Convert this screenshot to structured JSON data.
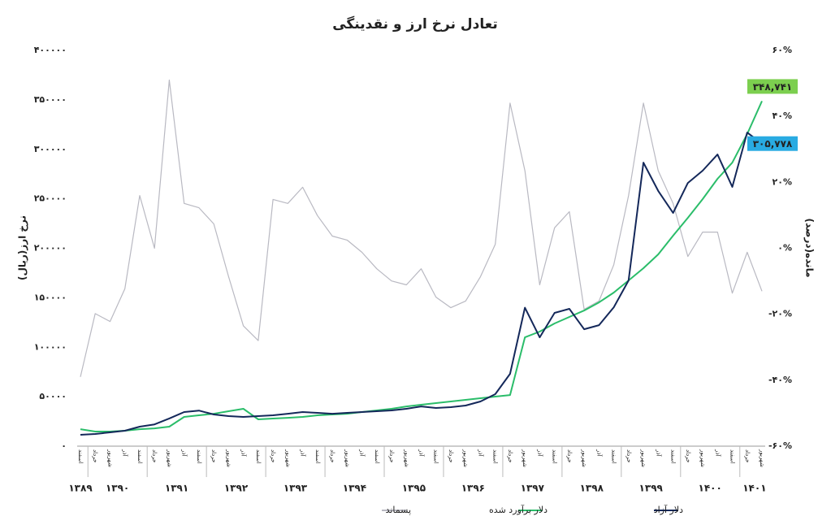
{
  "chart_data": {
    "type": "line",
    "title": "تعادل نرخ ارز و نقدینگی",
    "y_label": "نرخ ارز(ریال)",
    "y2_label": "مانده(درصد)",
    "categories": [
      "اسفند",
      "خرداد",
      "شهریور",
      "آذر",
      "اسفند",
      "خرداد",
      "شهریور",
      "آذر",
      "اسفند",
      "خرداد",
      "شهریور",
      "آذر",
      "اسفند",
      "خرداد",
      "شهریور",
      "آذر",
      "اسفند",
      "خرداد",
      "شهریور",
      "آذر",
      "اسفند",
      "خرداد",
      "شهریور",
      "آذر",
      "اسفند",
      "خرداد",
      "شهریور",
      "آذر",
      "اسفند",
      "خرداد",
      "شهریور",
      "آذر",
      "اسفند",
      "خرداد",
      "شهریور",
      "آذر",
      "اسفند",
      "خرداد",
      "شهریور",
      "آذر",
      "اسفند",
      "خرداد",
      "شهریور",
      "آذر",
      "اسفند",
      "خرداد",
      "شهریور"
    ],
    "years": [
      "۱۳۸۹",
      "۱۳۹۰",
      "۱۳۹۱",
      "۱۳۹۲",
      "۱۳۹۳",
      "۱۳۹۴",
      "۱۳۹۵",
      "۱۳۹۶",
      "۱۳۹۷",
      "۱۳۹۸",
      "۱۳۹۹",
      "۱۴۰۰",
      "۱۴۰۱"
    ],
    "series": [
      {
        "name": "دلار آزاد",
        "color": "#14285a",
        "values": [
          11500,
          12300,
          14000,
          15600,
          19700,
          22000,
          28000,
          34500,
          36000,
          32000,
          30400,
          29600,
          30400,
          31200,
          32800,
          34500,
          33700,
          32800,
          33700,
          34500,
          35300,
          36100,
          37800,
          40200,
          38600,
          39400,
          41100,
          45200,
          52600,
          73100,
          140000,
          110000,
          134700,
          138800,
          118200,
          122300,
          140400,
          167500,
          286600,
          258000,
          235700,
          266000,
          278400,
          294800,
          262000,
          317000,
          305778
        ],
        "value_labels": [
          null,
          null,
          null,
          null,
          null,
          null,
          null,
          null,
          null,
          null,
          null,
          null,
          null,
          null,
          null,
          null,
          null,
          null,
          null,
          null,
          null,
          null,
          null,
          null,
          null,
          null,
          null,
          null,
          null,
          null,
          null,
          null,
          null,
          null,
          null,
          null,
          null,
          null,
          null,
          null,
          null,
          null,
          null,
          null,
          null,
          null,
          "۳۰۵,۷۷۸"
        ],
        "label_color": "#29abe2"
      },
      {
        "name": "دلار برآورد شده",
        "color": "#2bbd6a",
        "values": [
          17200,
          14800,
          14800,
          15600,
          17200,
          18000,
          19700,
          29600,
          31200,
          32800,
          35300,
          37800,
          27100,
          27900,
          28700,
          29600,
          31200,
          32000,
          32800,
          34500,
          36100,
          37800,
          40200,
          41900,
          43500,
          45200,
          46800,
          48500,
          50100,
          51700,
          110000,
          115800,
          124000,
          130600,
          137100,
          145300,
          155200,
          167500,
          179900,
          193800,
          212700,
          230800,
          249700,
          270200,
          286600,
          315400,
          348741
        ],
        "value_labels": [
          null,
          null,
          null,
          null,
          null,
          null,
          null,
          null,
          null,
          null,
          null,
          null,
          null,
          null,
          null,
          null,
          null,
          null,
          null,
          null,
          null,
          null,
          null,
          null,
          null,
          null,
          null,
          null,
          null,
          null,
          null,
          null,
          null,
          null,
          null,
          null,
          null,
          null,
          null,
          null,
          null,
          null,
          null,
          null,
          null,
          null,
          "۳۴۸,۷۴۱"
        ],
        "label_color": "#7ccf4f"
      },
      {
        "name": "پسماند",
        "color": "#b9b9c2",
        "axis": "y2",
        "values": [
          -39,
          -19.8,
          -22.2,
          -12.3,
          16,
          0,
          51,
          13.6,
          12.3,
          7.4,
          -8.6,
          -23.5,
          -28,
          14.8,
          13.6,
          18.5,
          9.9,
          3.7,
          2.5,
          -1.2,
          -6.2,
          -9.9,
          -11.1,
          -6.2,
          -14.8,
          -18,
          -16,
          -8.6,
          1.2,
          44,
          23.5,
          -11.1,
          6.2,
          11.1,
          -18.5,
          -16,
          -5,
          16,
          44,
          23.5,
          13.6,
          -2.5,
          4.9,
          4.9,
          -13.6,
          -1.2,
          -13
        ]
      }
    ],
    "ylim": [
      0,
      400000
    ],
    "yticks": [
      {
        "value": 0,
        "label": "۰"
      },
      {
        "value": 50000,
        "label": "۵۰۰۰۰"
      },
      {
        "value": 100000,
        "label": "۱۰۰۰۰۰"
      },
      {
        "value": 150000,
        "label": "۱۵۰۰۰۰"
      },
      {
        "value": 200000,
        "label": "۲۰۰۰۰۰"
      },
      {
        "value": 250000,
        "label": "۲۵۰۰۰۰"
      },
      {
        "value": 300000,
        "label": "۳۰۰۰۰۰"
      },
      {
        "value": 350000,
        "label": "۳۵۰۰۰۰"
      },
      {
        "value": 400000,
        "label": "۴۰۰۰۰۰"
      }
    ],
    "y2lim": [
      -60,
      60
    ],
    "y2ticks": [
      {
        "value": -60,
        "label": "-۶۰%"
      },
      {
        "value": -40,
        "label": "-۴۰%"
      },
      {
        "value": -20,
        "label": "-۲۰%"
      },
      {
        "value": 0,
        "label": "۰%"
      },
      {
        "value": 20,
        "label": "۲۰%"
      },
      {
        "value": 40,
        "label": "۴۰%"
      },
      {
        "value": 60,
        "label": "۶۰%"
      }
    ],
    "grid": false,
    "legend": "bottom"
  }
}
